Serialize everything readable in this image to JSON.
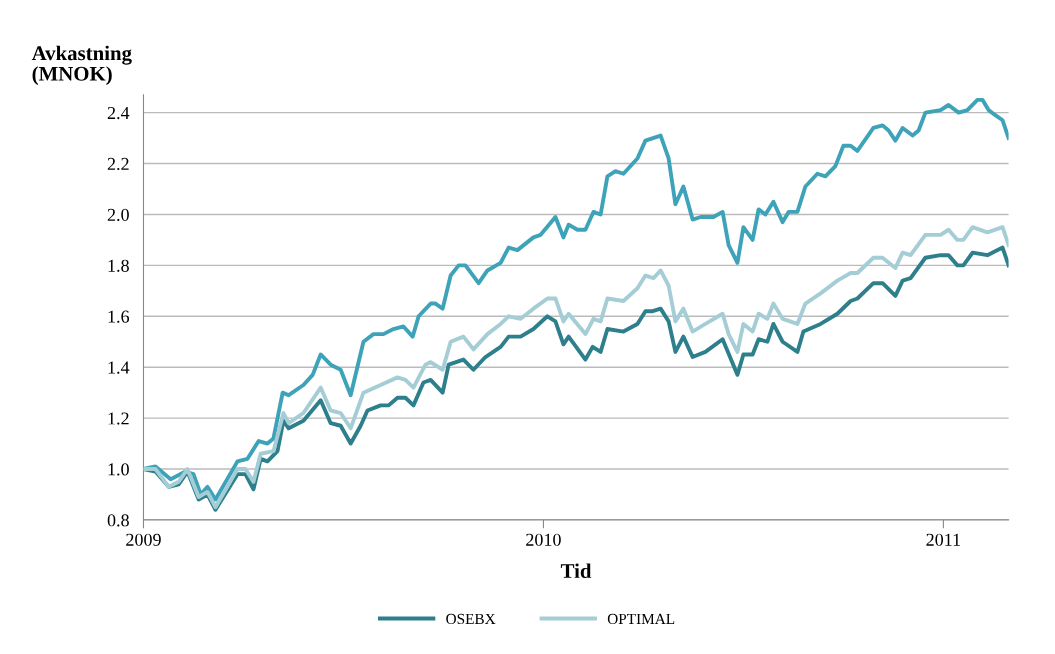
{
  "chart_data": {
    "type": "line",
    "xlabel": "Tid",
    "ylabel": "Avkastning\n(MNOK)",
    "xlim": [
      2009.0,
      2011.163
    ],
    "xticks": [
      2009,
      2010,
      2011
    ],
    "ylim": [
      0.8,
      2.47
    ],
    "yticks": [
      {
        "value": 0.8,
        "label": "0.8"
      },
      {
        "value": 1.0,
        "label": "1.0"
      },
      {
        "value": 1.2,
        "label": "1.2"
      },
      {
        "value": 1.4,
        "label": "1.4"
      },
      {
        "value": 1.6,
        "label": "1.6"
      },
      {
        "value": 1.8,
        "label": "1.8"
      },
      {
        "value": 2.0,
        "label": "2.0"
      },
      {
        "value": 2.2,
        "label": "2.2"
      },
      {
        "value": 2.4,
        "label": "2.4"
      }
    ],
    "grid": "y",
    "legend": "bottom",
    "marker": "none",
    "line_style": "solid",
    "series": [
      {
        "name": "OSEBX",
        "color": "#2e7f8c",
        "x": [
          2009.0,
          2009.03,
          2009.063,
          2009.088,
          2009.11,
          2009.138,
          2009.16,
          2009.18,
          2009.235,
          2009.255,
          2009.275,
          2009.293,
          2009.31,
          2009.335,
          2009.35,
          2009.363,
          2009.4,
          2009.443,
          2009.468,
          2009.493,
          2009.518,
          2009.543,
          2009.56,
          2009.593,
          2009.613,
          2009.635,
          2009.655,
          2009.675,
          2009.7,
          2009.718,
          2009.748,
          2009.763,
          2009.8,
          2009.825,
          2009.855,
          2009.893,
          2009.913,
          2009.943,
          2009.975,
          2010.01,
          2010.03,
          2010.05,
          2010.063,
          2010.105,
          2010.123,
          2010.143,
          2010.16,
          2010.2,
          2010.235,
          2010.255,
          2010.273,
          2010.293,
          2010.313,
          2010.33,
          2010.35,
          2010.373,
          2010.405,
          2010.448,
          2010.485,
          2010.5,
          2010.523,
          2010.538,
          2010.56,
          2010.575,
          2010.598,
          2010.635,
          2010.65,
          2010.693,
          2010.735,
          2010.768,
          2010.785,
          2010.825,
          2010.848,
          2010.88,
          2010.898,
          2010.918,
          2010.955,
          2010.993,
          2011.013,
          2011.035,
          2011.05,
          2011.073,
          2011.11,
          2011.148,
          2011.163
        ],
        "values": [
          1.0,
          0.99,
          0.93,
          0.94,
          0.99,
          0.88,
          0.9,
          0.84,
          0.98,
          0.98,
          0.92,
          1.04,
          1.03,
          1.07,
          1.19,
          1.16,
          1.19,
          1.27,
          1.18,
          1.17,
          1.1,
          1.17,
          1.23,
          1.25,
          1.25,
          1.28,
          1.28,
          1.25,
          1.34,
          1.35,
          1.3,
          1.41,
          1.43,
          1.39,
          1.44,
          1.48,
          1.52,
          1.52,
          1.55,
          1.6,
          1.58,
          1.49,
          1.52,
          1.43,
          1.48,
          1.46,
          1.55,
          1.54,
          1.57,
          1.62,
          1.62,
          1.63,
          1.58,
          1.46,
          1.52,
          1.44,
          1.46,
          1.51,
          1.37,
          1.45,
          1.45,
          1.51,
          1.5,
          1.57,
          1.5,
          1.46,
          1.54,
          1.57,
          1.61,
          1.66,
          1.67,
          1.73,
          1.73,
          1.68,
          1.74,
          1.75,
          1.83,
          1.84,
          1.84,
          1.8,
          1.8,
          1.85,
          1.84,
          1.87,
          1.8
        ]
      },
      {
        "color": "#3ea3b8",
        "x": [
          2009.0,
          2009.03,
          2009.068,
          2009.105,
          2009.125,
          2009.143,
          2009.16,
          2009.18,
          2009.235,
          2009.26,
          2009.288,
          2009.31,
          2009.325,
          2009.348,
          2009.363,
          2009.4,
          2009.423,
          2009.443,
          2009.468,
          2009.493,
          2009.518,
          2009.55,
          2009.575,
          2009.6,
          2009.625,
          2009.65,
          2009.673,
          2009.688,
          2009.718,
          2009.73,
          2009.748,
          2009.768,
          2009.788,
          2009.805,
          2009.838,
          2009.86,
          2009.893,
          2009.913,
          2009.935,
          2009.975,
          2009.993,
          2010.03,
          2010.05,
          2010.063,
          2010.085,
          2010.105,
          2010.125,
          2010.143,
          2010.16,
          2010.18,
          2010.2,
          2010.235,
          2010.255,
          2010.293,
          2010.313,
          2010.33,
          2010.35,
          2010.373,
          2010.393,
          2010.425,
          2010.448,
          2010.463,
          2010.485,
          2010.5,
          2010.523,
          2010.538,
          2010.555,
          2010.575,
          2010.598,
          2010.613,
          2010.635,
          2010.655,
          2010.685,
          2010.705,
          2010.73,
          2010.75,
          2010.768,
          2010.785,
          2010.825,
          2010.848,
          2010.863,
          2010.88,
          2010.898,
          2010.923,
          2010.938,
          2010.955,
          2010.993,
          2011.013,
          2011.038,
          2011.06,
          2011.085,
          2011.098,
          2011.113,
          2011.13,
          2011.148,
          2011.163
        ],
        "values": [
          1.0,
          1.01,
          0.96,
          0.99,
          0.98,
          0.9,
          0.93,
          0.88,
          1.03,
          1.04,
          1.11,
          1.1,
          1.12,
          1.3,
          1.29,
          1.33,
          1.37,
          1.45,
          1.41,
          1.39,
          1.29,
          1.5,
          1.53,
          1.53,
          1.55,
          1.56,
          1.52,
          1.6,
          1.65,
          1.65,
          1.63,
          1.76,
          1.8,
          1.8,
          1.73,
          1.78,
          1.81,
          1.87,
          1.86,
          1.91,
          1.92,
          1.99,
          1.91,
          1.96,
          1.94,
          1.94,
          2.01,
          2.0,
          2.15,
          2.17,
          2.16,
          2.22,
          2.29,
          2.31,
          2.22,
          2.04,
          2.11,
          1.98,
          1.99,
          1.99,
          2.01,
          1.88,
          1.81,
          1.95,
          1.9,
          2.02,
          2.0,
          2.05,
          1.97,
          2.01,
          2.01,
          2.11,
          2.16,
          2.15,
          2.19,
          2.27,
          2.27,
          2.25,
          2.34,
          2.35,
          2.33,
          2.29,
          2.34,
          2.31,
          2.33,
          2.4,
          2.41,
          2.43,
          2.4,
          2.41,
          2.45,
          2.45,
          2.41,
          2.39,
          2.37,
          2.3
        ]
      },
      {
        "name": "OPTIMAL",
        "color": "#a5cdd6",
        "x": [
          2009.0,
          2009.03,
          2009.063,
          2009.088,
          2009.11,
          2009.138,
          2009.16,
          2009.18,
          2009.235,
          2009.255,
          2009.275,
          2009.293,
          2009.325,
          2009.35,
          2009.363,
          2009.4,
          2009.443,
          2009.468,
          2009.493,
          2009.518,
          2009.55,
          2009.593,
          2009.635,
          2009.655,
          2009.675,
          2009.705,
          2009.718,
          2009.748,
          2009.768,
          2009.8,
          2009.825,
          2009.86,
          2009.893,
          2009.913,
          2009.943,
          2009.975,
          2010.01,
          2010.03,
          2010.05,
          2010.063,
          2010.105,
          2010.125,
          2010.143,
          2010.16,
          2010.2,
          2010.235,
          2010.255,
          2010.275,
          2010.293,
          2010.313,
          2010.33,
          2010.35,
          2010.373,
          2010.405,
          2010.448,
          2010.463,
          2010.485,
          2010.5,
          2010.523,
          2010.538,
          2010.56,
          2010.575,
          2010.598,
          2010.635,
          2010.655,
          2010.693,
          2010.735,
          2010.768,
          2010.785,
          2010.825,
          2010.848,
          2010.88,
          2010.898,
          2010.918,
          2010.955,
          2010.993,
          2011.013,
          2011.035,
          2011.05,
          2011.073,
          2011.11,
          2011.148,
          2011.163
        ],
        "values": [
          1.0,
          1.0,
          0.93,
          0.95,
          1.0,
          0.89,
          0.91,
          0.85,
          1.0,
          1.0,
          0.95,
          1.06,
          1.07,
          1.22,
          1.18,
          1.22,
          1.32,
          1.23,
          1.22,
          1.16,
          1.3,
          1.33,
          1.36,
          1.35,
          1.32,
          1.41,
          1.42,
          1.39,
          1.5,
          1.52,
          1.47,
          1.53,
          1.57,
          1.6,
          1.59,
          1.63,
          1.67,
          1.67,
          1.58,
          1.61,
          1.53,
          1.59,
          1.58,
          1.67,
          1.66,
          1.71,
          1.76,
          1.75,
          1.78,
          1.72,
          1.58,
          1.63,
          1.54,
          1.57,
          1.61,
          1.53,
          1.46,
          1.57,
          1.54,
          1.61,
          1.59,
          1.65,
          1.59,
          1.57,
          1.65,
          1.69,
          1.74,
          1.77,
          1.77,
          1.83,
          1.83,
          1.79,
          1.85,
          1.84,
          1.92,
          1.92,
          1.94,
          1.9,
          1.9,
          1.95,
          1.93,
          1.95,
          1.88
        ]
      }
    ]
  }
}
